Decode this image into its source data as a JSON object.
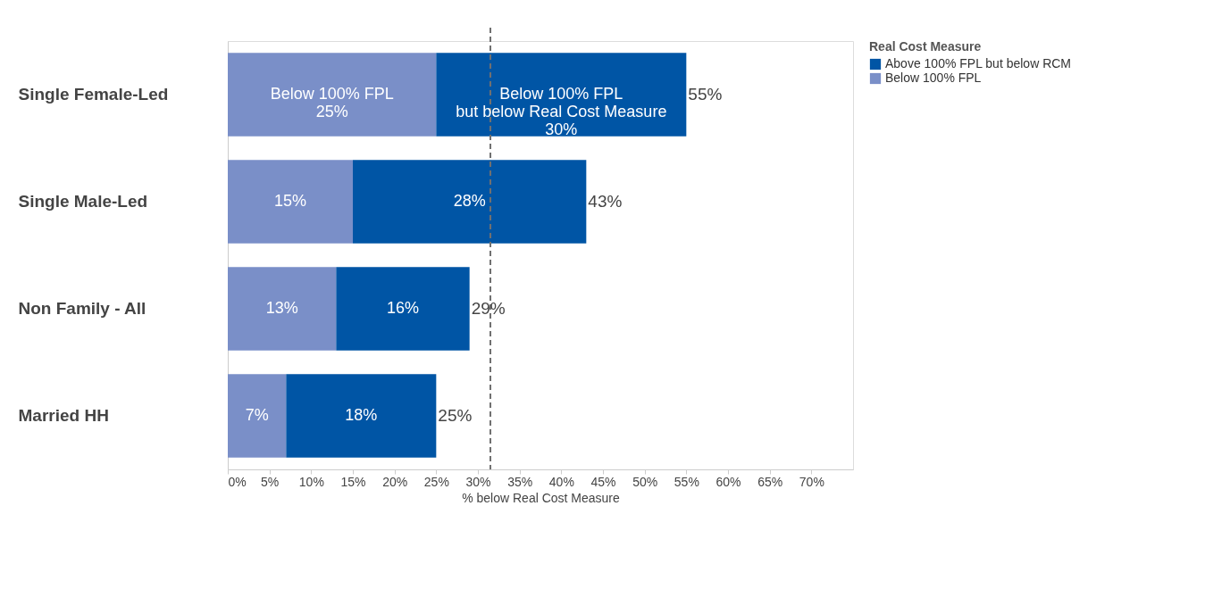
{
  "chart_data": {
    "type": "bar",
    "orientation": "horizontal",
    "stacked": true,
    "xlabel": "% below Real Cost Measure",
    "legend_title": "Real Cost Measure",
    "categories": [
      "Single Female-Led",
      "Single Male-Led",
      "Non Family - All",
      "Married HH"
    ],
    "series": [
      {
        "name": "Below 100% FPL",
        "color": "#7a8fc8",
        "values": [
          25,
          15,
          13,
          7
        ],
        "value_labels": [
          "Below 100% FPL\n25%",
          "15%",
          "13%",
          "7%"
        ]
      },
      {
        "name": "Above 100% FPL but below RCM",
        "color": "#0055a5",
        "values": [
          30,
          28,
          16,
          18
        ],
        "value_labels": [
          "Below 100% FPL\nbut below Real Cost Measure\n30%",
          "28%",
          "16%",
          "18%"
        ]
      }
    ],
    "totals": [
      "55%",
      "43%",
      "29%",
      "25%"
    ],
    "xlim": [
      0,
      75
    ],
    "xticks": [
      {
        "value": 0,
        "label": "0%"
      },
      {
        "value": 5,
        "label": "5%"
      },
      {
        "value": 10,
        "label": "10%"
      },
      {
        "value": 15,
        "label": "15%"
      },
      {
        "value": 20,
        "label": "20%"
      },
      {
        "value": 25,
        "label": "25%"
      },
      {
        "value": 30,
        "label": "30%"
      },
      {
        "value": 35,
        "label": "35%"
      },
      {
        "value": 40,
        "label": "40%"
      },
      {
        "value": 45,
        "label": "45%"
      },
      {
        "value": 50,
        "label": "50%"
      },
      {
        "value": 55,
        "label": "55%"
      },
      {
        "value": 60,
        "label": "60%"
      },
      {
        "value": 65,
        "label": "65%"
      },
      {
        "value": 70,
        "label": "70%"
      }
    ],
    "ref_lines": [
      {
        "axis": "x",
        "value": 31.5,
        "color": "#707070",
        "line_style": "dashed"
      }
    ],
    "grid": false,
    "legend": "top right"
  }
}
